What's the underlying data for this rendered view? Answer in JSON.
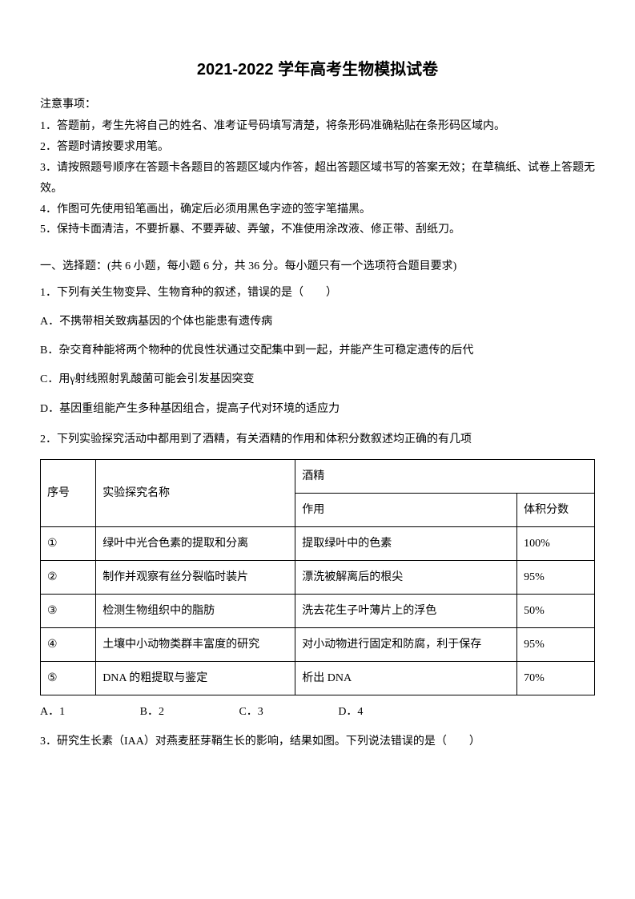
{
  "title": "2021-2022 学年高考生物模拟试卷",
  "notice": {
    "heading": "注意事项：",
    "items": [
      "1．答题前，考生先将自己的姓名、准考证号码填写清楚，将条形码准确粘贴在条形码区域内。",
      "2．答题时请按要求用笔。",
      "3．请按照题号顺序在答题卡各题目的答题区域内作答，超出答题区域书写的答案无效；在草稿纸、试卷上答题无效。",
      "4．作图可先使用铅笔画出，确定后必须用黑色字迹的签字笔描黑。",
      "5．保持卡面清洁，不要折暴、不要弄破、弄皱，不准使用涂改液、修正带、刮纸刀。"
    ]
  },
  "section1": {
    "title": "一、选择题：(共 6 小题，每小题 6 分，共 36 分。每小题只有一个选项符合题目要求)",
    "q1": {
      "stem": "1．下列有关生物变异、生物育种的叙述，错误的是（　　）",
      "options": {
        "A": "A．不携带相关致病基因的个体也能患有遗传病",
        "B": "B．杂交育种能将两个物种的优良性状通过交配集中到一起，并能产生可稳定遗传的后代",
        "C": "C．用γ射线照射乳酸菌可能会引发基因突变",
        "D": "D．基因重组能产生多种基因组合，提高子代对环境的适应力"
      }
    },
    "q2": {
      "stem": "2．下列实验探究活动中都用到了酒精，有关酒精的作用和体积分数叙述均正确的有几项",
      "table": {
        "headers": {
          "seq": "序号",
          "name": "实验探究名称",
          "alcohol": "酒精",
          "effect": "作用",
          "pct": "体积分数"
        },
        "rows": [
          {
            "seq": "①",
            "name": "绿叶中光合色素的提取和分离",
            "effect": "提取绿叶中的色素",
            "pct": "100%"
          },
          {
            "seq": "②",
            "name": "制作并观察有丝分裂临时装片",
            "effect": "漂洗被解离后的根尖",
            "pct": "95%"
          },
          {
            "seq": "③",
            "name": "检测生物组织中的脂肪",
            "effect": "洗去花生子叶薄片上的浮色",
            "pct": "50%"
          },
          {
            "seq": "④",
            "name": "土壤中小动物类群丰富度的研究",
            "effect": "对小动物进行固定和防腐，利于保存",
            "pct": "95%"
          },
          {
            "seq": "⑤",
            "name": "DNA 的粗提取与鉴定",
            "effect": "析出 DNA",
            "pct": "70%"
          }
        ]
      },
      "answers": {
        "A": "A．1",
        "B": "B．2",
        "C": "C．3",
        "D": "D．4"
      }
    },
    "q3": {
      "stem": "3．研究生长素（IAA）对燕麦胚芽鞘生长的影响，结果如图。下列说法错误的是（　　）"
    }
  }
}
